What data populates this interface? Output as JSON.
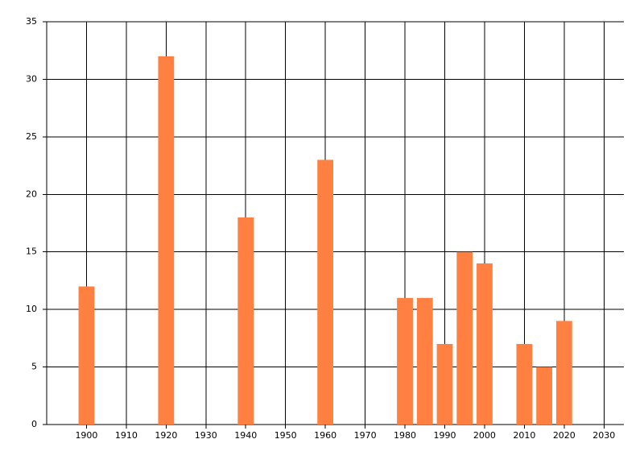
{
  "chart_data": {
    "type": "bar",
    "x": [
      1900,
      1920,
      1940,
      1960,
      1980,
      1985,
      1990,
      1995,
      2000,
      2010,
      2015,
      2020
    ],
    "values": [
      12,
      32,
      18,
      23,
      11,
      11,
      7,
      15,
      14,
      7,
      5,
      9
    ],
    "color": "#ff8040",
    "xlim": [
      1890,
      2035
    ],
    "xticks": [
      1900,
      1910,
      1920,
      1930,
      1940,
      1950,
      1960,
      1970,
      1980,
      1990,
      2000,
      2010,
      2020,
      2030
    ],
    "ylim": [
      0,
      35
    ],
    "yticks": [
      0,
      5,
      10,
      15,
      20,
      25,
      30,
      35
    ],
    "grid": true
  }
}
